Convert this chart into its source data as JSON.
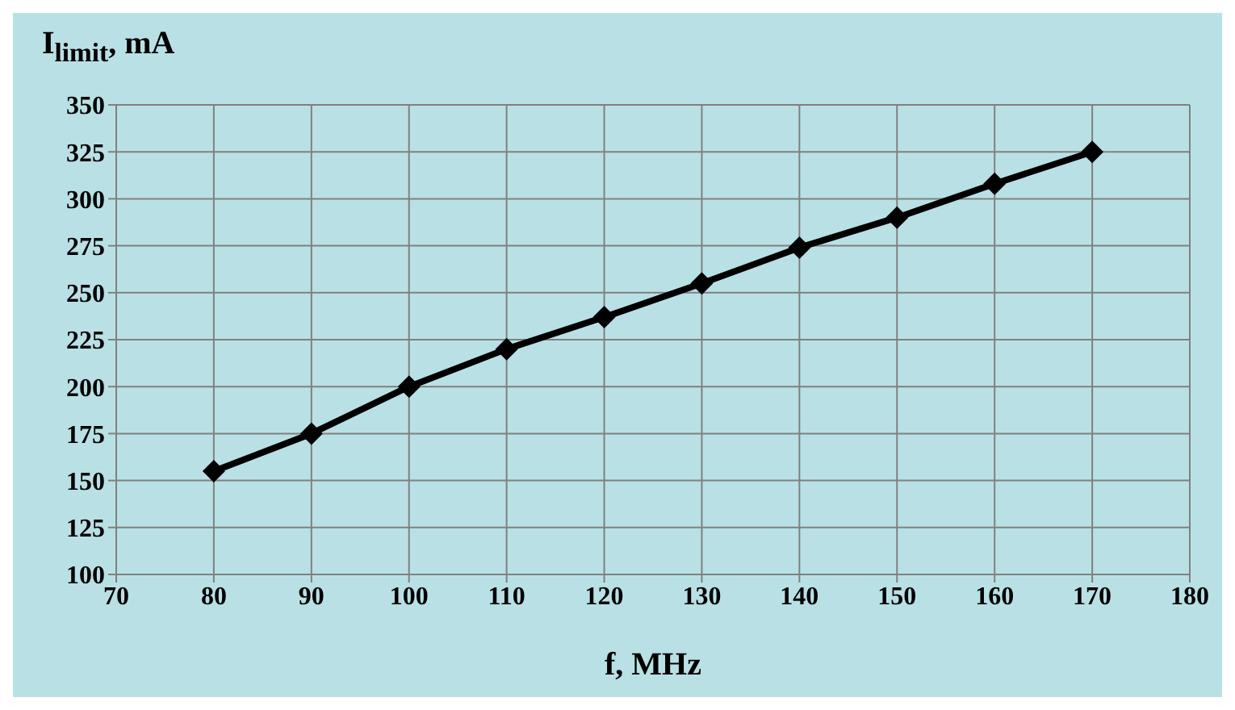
{
  "chart_data": {
    "type": "line",
    "ylabel": "I$_{limit}$, mA",
    "xlabel": "f,  MHz",
    "x": [
      80,
      90,
      100,
      110,
      120,
      130,
      140,
      150,
      160,
      170
    ],
    "series": [
      {
        "color": "#000000",
        "values": [
          155,
          175,
          200,
          220,
          237,
          255,
          274,
          290,
          308,
          325
        ]
      }
    ],
    "xlim": [
      70,
      180
    ],
    "xticks": [
      70,
      80,
      90,
      100,
      110,
      120,
      130,
      140,
      150,
      160,
      170,
      180
    ],
    "ylim": [
      100,
      350
    ],
    "yticks": [
      100,
      125,
      150,
      175,
      200,
      225,
      250,
      275,
      300,
      325,
      350
    ],
    "grid": true,
    "marker": "diamond",
    "line_style": "solid"
  }
}
